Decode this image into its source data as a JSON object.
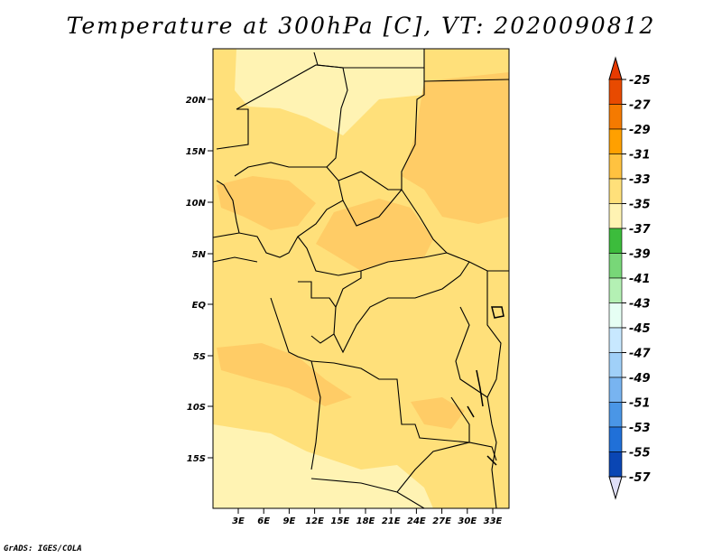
{
  "title": "Temperature at 300hPa [C], VT: 2020090812",
  "credit": "GrADS: IGES/COLA",
  "map": {
    "lat_labels": [
      "20N",
      "15N",
      "10N",
      "5N",
      "EQ",
      "5S",
      "10S",
      "15S"
    ],
    "lon_labels": [
      "3E",
      "6E",
      "9E",
      "12E",
      "15E",
      "18E",
      "21E",
      "24E",
      "27E",
      "30E",
      "33E"
    ],
    "field_colors": {
      "light": "#FFF3B3",
      "mid": "#FFE07A",
      "warm": "#FFCC66",
      "warmer": "#F6B540"
    }
  },
  "colorbar": {
    "labels": [
      "-25",
      "-27",
      "-29",
      "-31",
      "-33",
      "-35",
      "-37",
      "-39",
      "-41",
      "-43",
      "-45",
      "-47",
      "-49",
      "-51",
      "-53",
      "-55",
      "-57"
    ],
    "colors": [
      "#E84A00",
      "#F57A00",
      "#FFA000",
      "#FFC240",
      "#FFE07A",
      "#FFF3B3",
      "#3CBC3C",
      "#78D778",
      "#B4F0B4",
      "#E6FFF4",
      "#C8E8FF",
      "#A0D0F8",
      "#78B4F0",
      "#4A96E6",
      "#2070D8",
      "#0A46B4",
      "#0A1478"
    ],
    "top_cap_color": "#E83A00",
    "bottom_cap_color": "#E0E0F8"
  }
}
